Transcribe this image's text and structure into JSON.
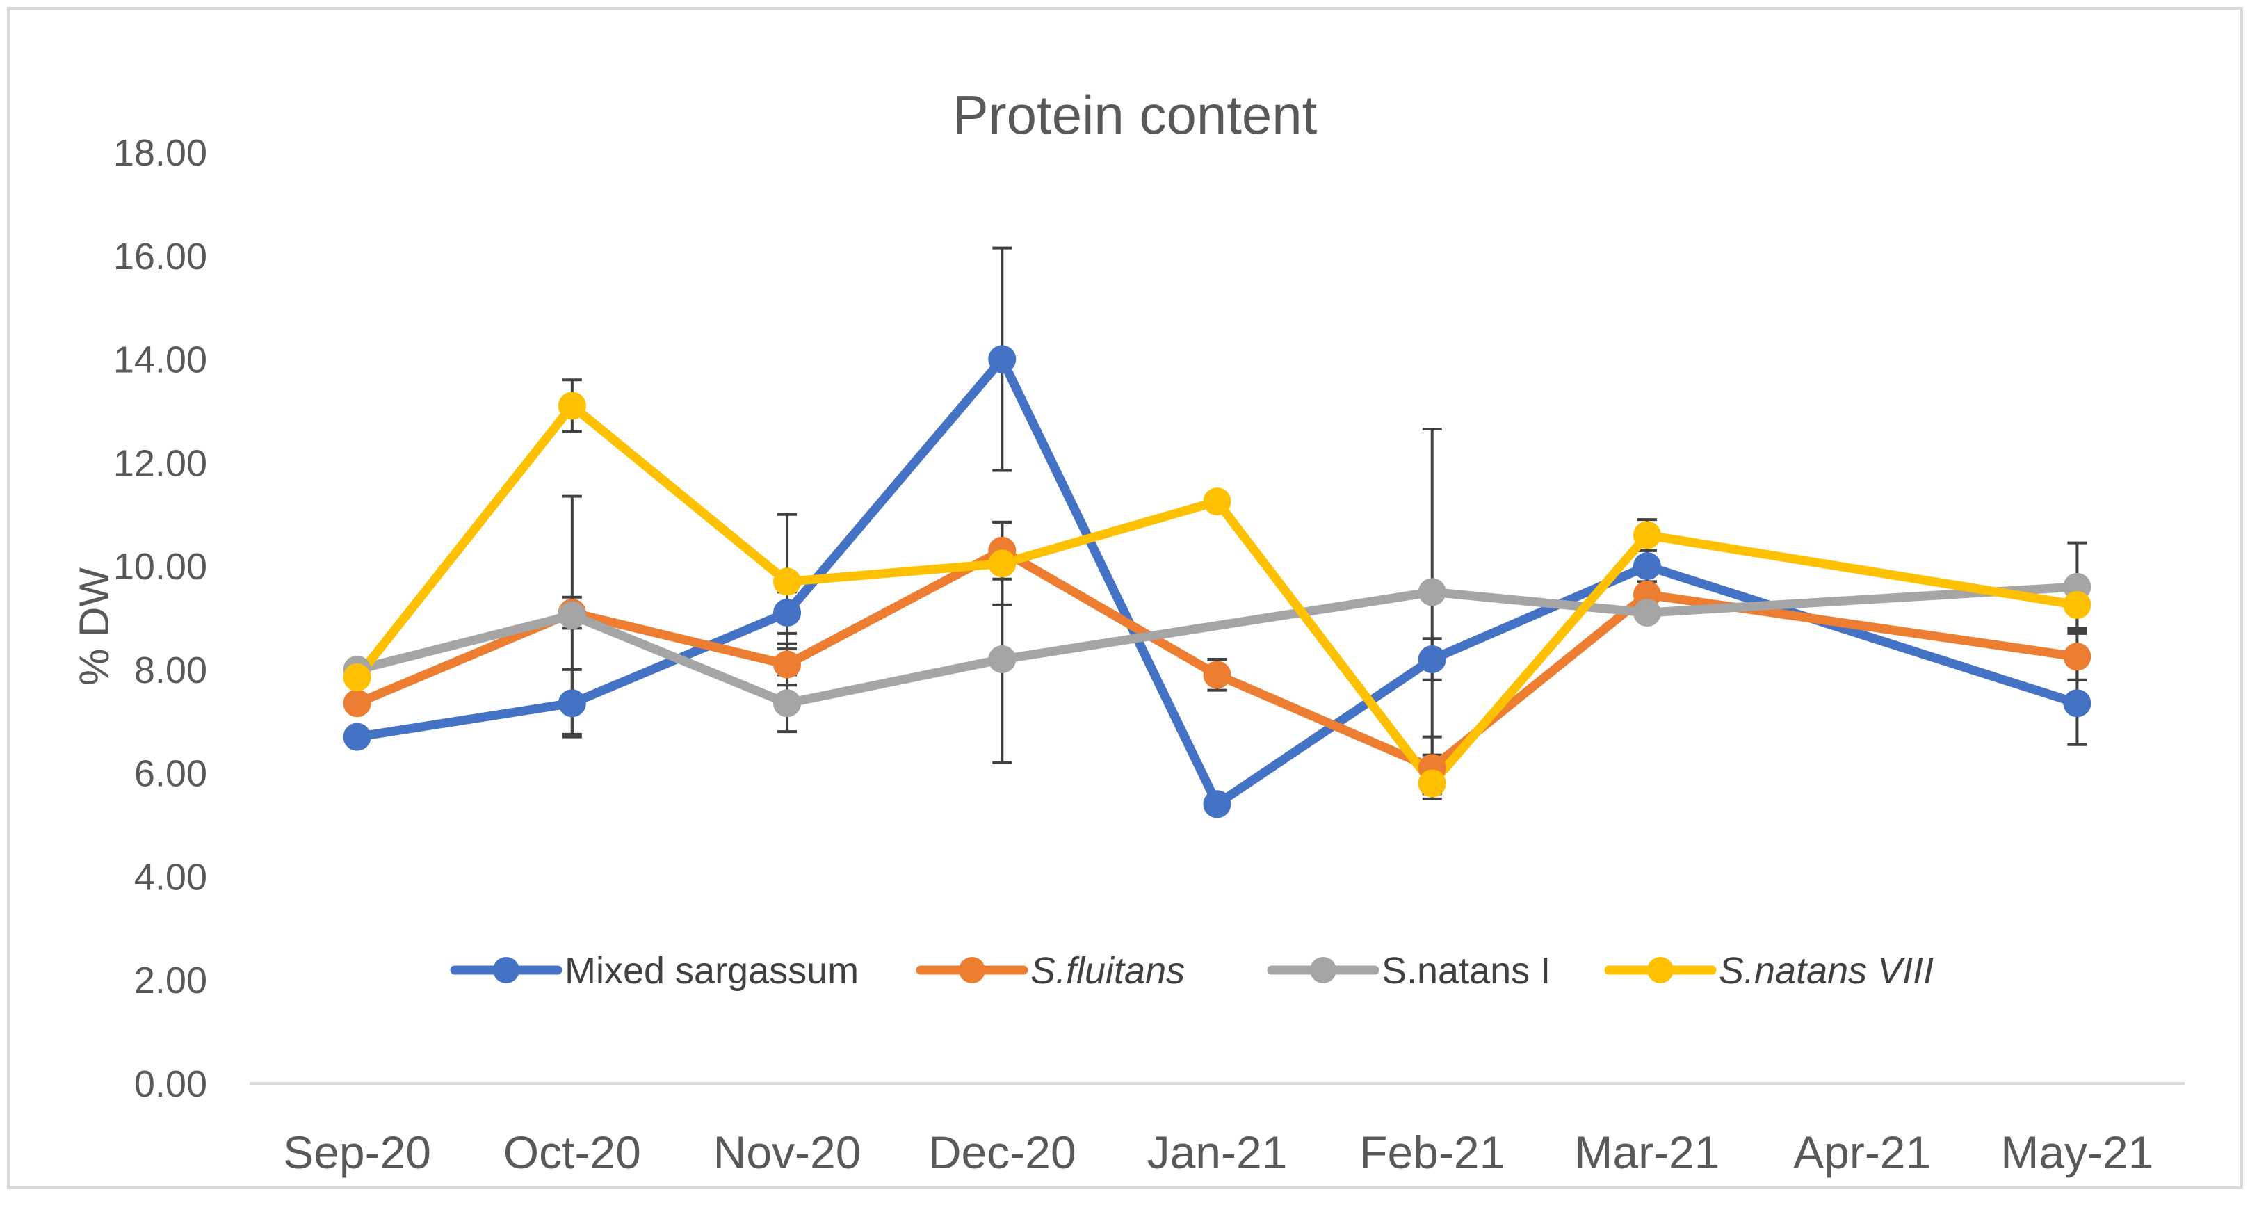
{
  "chart_data": {
    "type": "line",
    "title": "Protein content",
    "xlabel": "",
    "ylabel": "% DW",
    "ylim": [
      0,
      18
    ],
    "y_ticks": [
      "0.00",
      "2.00",
      "4.00",
      "6.00",
      "8.00",
      "10.00",
      "12.00",
      "14.00",
      "16.00",
      "18.00"
    ],
    "categories": [
      "Sep-20",
      "Oct-20",
      "Nov-20",
      "Dec-20",
      "Jan-21",
      "Feb-21",
      "Mar-21",
      "Apr-21",
      "May-21"
    ],
    "legend_position": "bottom-inside",
    "grid": false,
    "series": [
      {
        "name": "Mixed sargassum",
        "color": "#4472c4",
        "italic": false,
        "values": [
          6.7,
          7.35,
          9.1,
          14.0,
          5.4,
          8.2,
          10.0,
          null,
          7.35
        ],
        "errors": [
          null,
          0.65,
          0.4,
          2.15,
          null,
          0.4,
          0.3,
          null,
          0.8
        ]
      },
      {
        "name": "S.fluitans",
        "color": "#ed7d31",
        "italic": true,
        "values": [
          7.35,
          9.1,
          8.1,
          10.3,
          7.9,
          6.1,
          9.45,
          null,
          8.25
        ],
        "errors": [
          null,
          0.3,
          0.4,
          0.55,
          0.3,
          0.6,
          null,
          null,
          0.45
        ]
      },
      {
        "name": "S.natans I",
        "color": "#a5a5a5",
        "italic": false,
        "values": [
          8.0,
          9.05,
          7.35,
          8.2,
          null,
          9.5,
          9.1,
          null,
          9.6
        ],
        "errors": [
          null,
          2.3,
          0.55,
          2.0,
          null,
          3.15,
          null,
          null,
          0.85
        ]
      },
      {
        "name": "S.natans VIII",
        "color": "#ffc000",
        "italic": true,
        "values": [
          7.85,
          13.1,
          9.7,
          10.05,
          11.25,
          5.8,
          10.6,
          null,
          9.25
        ],
        "errors": [
          null,
          0.5,
          1.3,
          0.8,
          null,
          0.2,
          0.3,
          null,
          0.45
        ]
      }
    ]
  }
}
